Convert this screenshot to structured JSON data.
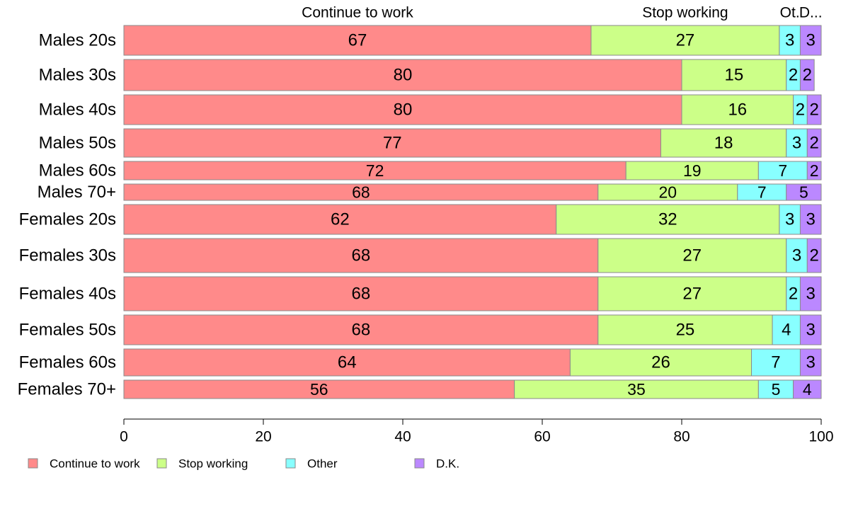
{
  "chart_data": {
    "type": "bar",
    "orientation": "horizontal",
    "stacked": true,
    "categories": [
      "Males 20s",
      "Males 30s",
      "Males 40s",
      "Males 50s",
      "Males 60s",
      "Males 70+",
      "Females 20s",
      "Females 30s",
      "Females 40s",
      "Females 50s",
      "Females 60s",
      "Females 70+"
    ],
    "series": [
      {
        "name": "Continue to work",
        "color": "#FF8A8A",
        "values": [
          67,
          80,
          80,
          77,
          72,
          68,
          62,
          68,
          68,
          68,
          64,
          56
        ]
      },
      {
        "name": "Stop working",
        "color": "#CCFF88",
        "values": [
          27,
          15,
          16,
          18,
          19,
          20,
          32,
          27,
          27,
          25,
          26,
          35
        ]
      },
      {
        "name": "Other",
        "color": "#88FFFF",
        "values": [
          3,
          2,
          2,
          3,
          7,
          7,
          3,
          3,
          2,
          4,
          7,
          5
        ]
      },
      {
        "name": "D.K.",
        "color": "#BB88FF",
        "values": [
          3,
          2,
          2,
          2,
          2,
          5,
          3,
          2,
          3,
          3,
          3,
          4
        ]
      }
    ],
    "relative_bar_heights": [
      42,
      44,
      42,
      40,
      26,
      23,
      42,
      48,
      48,
      42,
      38,
      26
    ],
    "top_labels": [
      "Continue to work",
      "Stop working",
      "Ot.",
      "D..."
    ],
    "xlim": [
      0,
      100
    ],
    "x_ticks": [
      "0",
      "20",
      "40",
      "60",
      "80",
      "100"
    ],
    "legend_position": "bottom",
    "title": "",
    "xlabel": "",
    "ylabel": ""
  }
}
